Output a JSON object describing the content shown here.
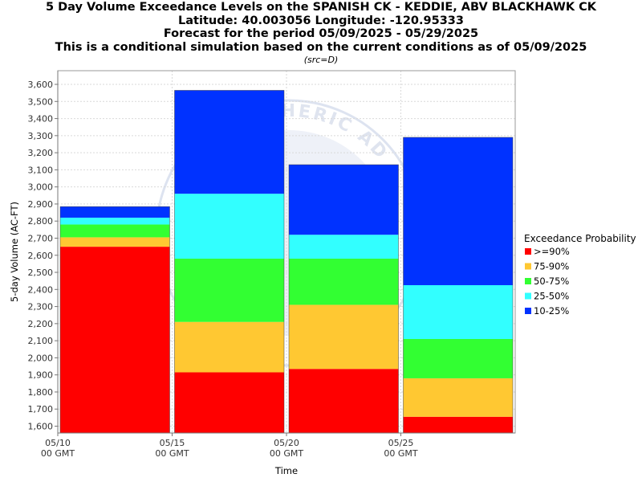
{
  "header": {
    "line1": "5 Day Volume Exceedance Levels on the SPANISH CK - KEDDIE, ABV BLACKHAWK CK",
    "line2": "Latitude: 40.003056 Longitude: -120.95333",
    "line3": "Forecast for the period 05/09/2025 - 05/29/2025",
    "line4": "This is a conditional simulation based on the current conditions as of 05/09/2025",
    "src": "(src=D)"
  },
  "watermark": "ATMOSPHERIC AD",
  "chart_data": {
    "type": "bar",
    "stacked": true,
    "xlabel": "Time",
    "ylabel": "5-day Volume (AC-FT)",
    "ylim": [
      1560,
      3680
    ],
    "yticks": [
      1600,
      1700,
      1800,
      1900,
      2000,
      2100,
      2200,
      2300,
      2400,
      2500,
      2600,
      2700,
      2800,
      2900,
      3000,
      3100,
      3200,
      3300,
      3400,
      3500,
      3600
    ],
    "ytick_labels": [
      "1,600",
      "1,700",
      "1,800",
      "1,900",
      "2,000",
      "2,100",
      "2,200",
      "2,300",
      "2,400",
      "2,500",
      "2,600",
      "2,700",
      "2,800",
      "2,900",
      "3,000",
      "3,100",
      "3,200",
      "3,300",
      "3,400",
      "3,500",
      "3,600"
    ],
    "xlim": [
      "2025-05-10",
      "2025-05-30"
    ],
    "xticks": [
      {
        "date": "2025-05-10",
        "line1": "05/10",
        "line2": "00 GMT"
      },
      {
        "date": "2025-05-15",
        "line1": "05/15",
        "line2": "00 GMT"
      },
      {
        "date": "2025-05-20",
        "line1": "05/20",
        "line2": "00 GMT"
      },
      {
        "date": "2025-05-25",
        "line1": "05/25",
        "line2": "00 GMT"
      }
    ],
    "bars": [
      {
        "start": "2025-05-10",
        "end": "2025-05-15",
        "levels": [
          2650,
          2705,
          2780,
          2820,
          2885
        ]
      },
      {
        "start": "2025-05-15",
        "end": "2025-05-20",
        "levels": [
          1915,
          2210,
          2580,
          2960,
          3565
        ]
      },
      {
        "start": "2025-05-20",
        "end": "2025-05-25",
        "levels": [
          1935,
          2310,
          2580,
          2720,
          3130
        ]
      },
      {
        "start": "2025-05-25",
        "end": "2025-05-30",
        "levels": [
          1655,
          1880,
          2110,
          2425,
          3290
        ]
      }
    ],
    "grid": true,
    "legend_position": "right",
    "legend": {
      "title": "Exceedance Probability",
      "entries": [
        {
          "label": ">=90%",
          "color": "#ff0000"
        },
        {
          "label": "75-90%",
          "color": "#ffc832"
        },
        {
          "label": "50-75%",
          "color": "#32ff32"
        },
        {
          "label": "25-50%",
          "color": "#32ffff"
        },
        {
          "label": "10-25%",
          "color": "#0032ff"
        }
      ]
    }
  }
}
